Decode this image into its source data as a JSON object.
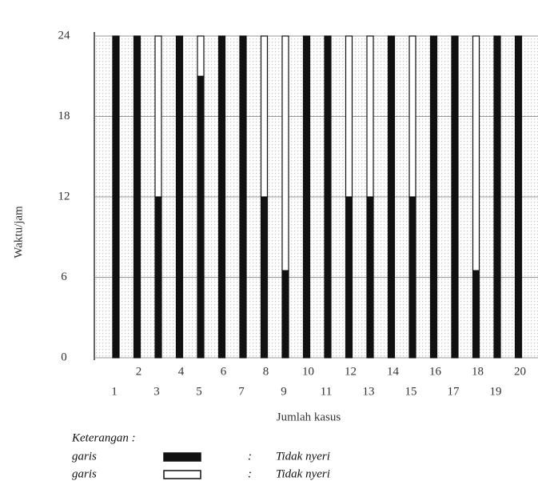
{
  "chart_data": {
    "type": "stacked_bar",
    "y_label": "Waktu/jam",
    "x_label": "Jumlah kasus",
    "categories": [
      1,
      2,
      3,
      4,
      5,
      6,
      7,
      8,
      9,
      10,
      11,
      12,
      13,
      14,
      15,
      16,
      17,
      18,
      19,
      20
    ],
    "series": [
      {
        "name": "Tidak nyeri",
        "legend_label": "garis",
        "color": "#111111",
        "values": [
          24,
          24,
          12,
          24,
          21,
          24,
          24,
          12,
          6.5,
          24,
          24,
          12,
          12,
          24,
          12,
          24,
          24,
          6.5,
          24,
          24
        ]
      },
      {
        "name": "Tidak nyeri",
        "legend_label": "garis",
        "color": "#ffffff",
        "values": [
          0,
          0,
          12,
          0,
          3,
          0,
          0,
          12,
          17.5,
          0,
          0,
          12,
          12,
          0,
          12,
          0,
          0,
          17.5,
          0,
          0
        ]
      }
    ],
    "ylim": [
      0,
      24
    ],
    "yticks": [
      0,
      6,
      12,
      18,
      24
    ],
    "grid": true,
    "legend_title": "Keterangan :",
    "legend_separator": ":"
  }
}
